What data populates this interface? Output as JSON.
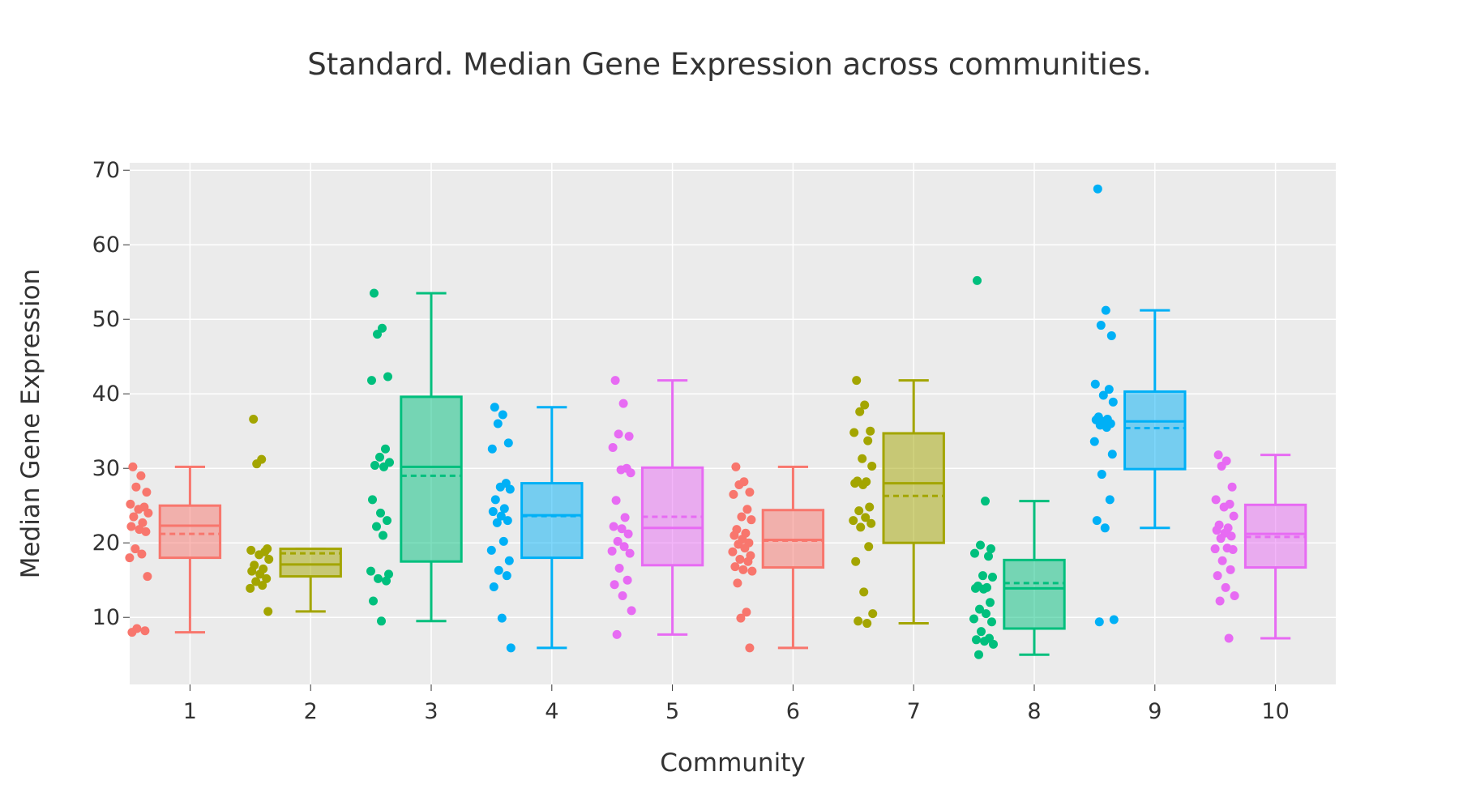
{
  "chart_data": {
    "type": "box",
    "title": "Standard. Median Gene Expression across communities.",
    "xlabel": "Community",
    "ylabel": "Median Gene Expression",
    "ylim": [
      1,
      71
    ],
    "yticks": [
      10,
      20,
      30,
      40,
      50,
      60,
      70
    ],
    "grid": true,
    "background": "#ebebeb",
    "gridColor": "#ffffff",
    "colors": {
      "1": "#f8766d",
      "2": "#a3a500",
      "3": "#00bf7d",
      "4": "#00b0f6",
      "5": "#e76bf3",
      "6": "#f8766d",
      "7": "#a3a500",
      "8": "#00bf7d",
      "9": "#00b0f6",
      "10": "#e76bf3"
    },
    "categories": [
      "1",
      "2",
      "3",
      "4",
      "5",
      "6",
      "7",
      "8",
      "9",
      "10"
    ],
    "boxes": [
      {
        "category": "1",
        "min": 8.0,
        "q1": 18.0,
        "median": 22.3,
        "q3": 25.0,
        "max": 30.2,
        "mean": 21.2,
        "points": [
          30.2,
          29.0,
          27.5,
          26.8,
          25.2,
          24.8,
          24.5,
          24.0,
          23.5,
          22.7,
          22.2,
          21.8,
          21.5,
          19.2,
          18.5,
          18.0,
          15.5,
          8.5,
          8.2,
          8.0
        ]
      },
      {
        "category": "2",
        "min": 10.8,
        "q1": 15.5,
        "median": 17.1,
        "q3": 19.2,
        "max": 19.2,
        "mean": 18.6,
        "points": [
          36.6,
          31.2,
          30.6,
          19.2,
          19.0,
          18.8,
          18.4,
          17.8,
          17.0,
          16.5,
          16.2,
          15.8,
          15.2,
          14.8,
          14.3,
          13.9,
          10.8
        ]
      },
      {
        "category": "3",
        "min": 9.5,
        "q1": 17.5,
        "median": 30.2,
        "q3": 39.6,
        "max": 53.5,
        "mean": 29.0,
        "points": [
          53.5,
          48.8,
          48.0,
          42.3,
          41.8,
          32.6,
          31.5,
          30.8,
          30.4,
          30.2,
          25.8,
          24.0,
          23.0,
          22.2,
          21.0,
          16.2,
          15.8,
          15.2,
          14.9,
          12.2,
          9.5
        ]
      },
      {
        "category": "4",
        "min": 5.9,
        "q1": 18.0,
        "median": 23.7,
        "q3": 28.0,
        "max": 38.2,
        "mean": 23.6,
        "points": [
          38.2,
          37.2,
          36.0,
          33.4,
          32.6,
          28.0,
          27.5,
          27.2,
          25.8,
          24.6,
          24.2,
          23.6,
          23.0,
          22.7,
          20.2,
          19.0,
          17.6,
          16.3,
          15.6,
          14.1,
          9.9,
          5.9
        ]
      },
      {
        "category": "5",
        "min": 7.7,
        "q1": 17.0,
        "median": 22.0,
        "q3": 30.1,
        "max": 41.8,
        "mean": 23.5,
        "points": [
          41.8,
          38.7,
          34.6,
          34.3,
          32.8,
          30.0,
          29.8,
          29.4,
          25.7,
          23.4,
          22.2,
          21.9,
          21.2,
          20.2,
          19.5,
          18.9,
          18.6,
          16.6,
          15.0,
          14.4,
          12.9,
          10.9,
          7.7
        ]
      },
      {
        "category": "6",
        "min": 5.9,
        "q1": 16.7,
        "median": 20.4,
        "q3": 24.4,
        "max": 30.2,
        "mean": 20.3,
        "points": [
          30.2,
          28.2,
          27.8,
          26.8,
          26.5,
          24.5,
          23.5,
          23.1,
          21.8,
          21.3,
          21.0,
          20.5,
          20.0,
          19.8,
          19.3,
          18.8,
          18.3,
          17.8,
          17.5,
          16.8,
          16.4,
          16.2,
          14.6,
          10.7,
          9.9,
          5.9
        ]
      },
      {
        "category": "7",
        "min": 9.2,
        "q1": 20.0,
        "median": 28.0,
        "q3": 34.7,
        "max": 41.8,
        "mean": 26.3,
        "points": [
          41.8,
          38.5,
          37.6,
          35.0,
          34.8,
          33.7,
          31.3,
          30.3,
          28.3,
          28.2,
          28.0,
          27.8,
          24.8,
          24.3,
          23.4,
          23.0,
          22.6,
          22.1,
          19.5,
          17.5,
          13.4,
          10.5,
          9.5,
          9.2
        ]
      },
      {
        "category": "8",
        "min": 5.0,
        "q1": 8.5,
        "median": 13.9,
        "q3": 17.7,
        "max": 25.6,
        "mean": 14.6,
        "points": [
          55.2,
          25.6,
          19.7,
          19.2,
          18.6,
          18.2,
          15.6,
          15.4,
          14.2,
          14.0,
          13.9,
          13.8,
          12.0,
          11.1,
          10.5,
          9.8,
          9.4,
          8.1,
          7.2,
          7.0,
          6.8,
          6.4,
          5.0
        ]
      },
      {
        "category": "9",
        "min": 22.0,
        "q1": 29.9,
        "median": 36.3,
        "q3": 40.3,
        "max": 51.2,
        "mean": 35.4,
        "points": [
          67.5,
          51.2,
          49.2,
          47.8,
          41.3,
          40.6,
          39.8,
          38.9,
          36.9,
          36.6,
          36.5,
          36.3,
          36.0,
          35.8,
          35.5,
          33.6,
          31.9,
          29.2,
          25.8,
          23.0,
          22.0,
          9.7,
          9.4
        ]
      },
      {
        "category": "10",
        "min": 7.2,
        "q1": 16.7,
        "median": 21.2,
        "q3": 25.1,
        "max": 31.8,
        "mean": 20.8,
        "points": [
          31.8,
          31.0,
          30.3,
          27.5,
          25.8,
          25.2,
          24.8,
          23.6,
          22.4,
          22.0,
          21.7,
          21.3,
          20.9,
          20.6,
          19.3,
          19.2,
          19.1,
          17.6,
          16.4,
          15.6,
          14.0,
          12.9,
          12.2,
          7.2
        ]
      }
    ]
  }
}
